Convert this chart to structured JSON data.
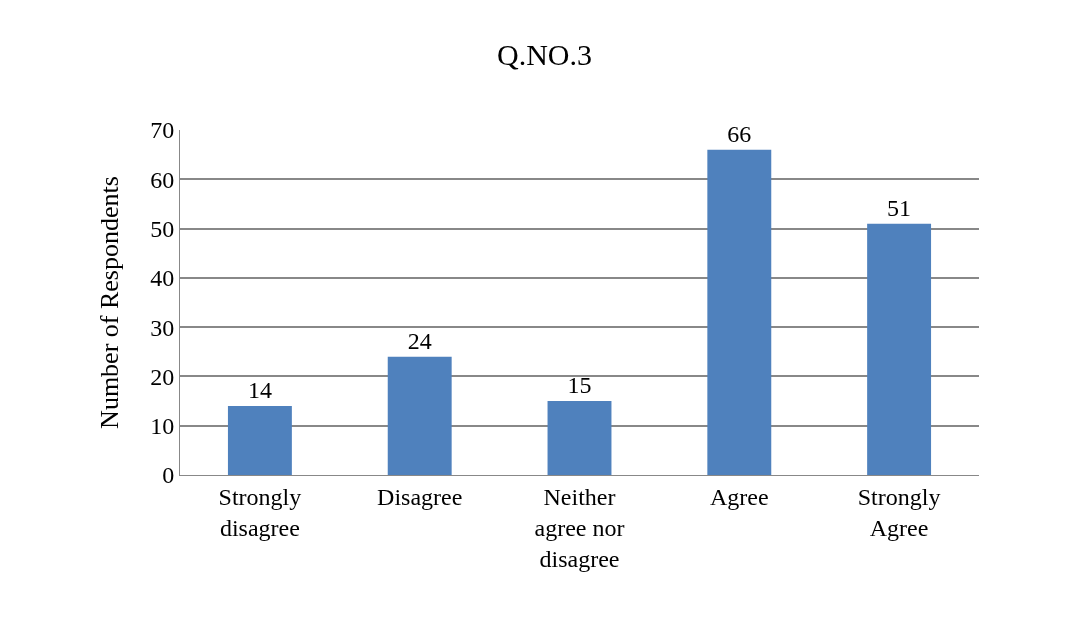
{
  "chart_data": {
    "type": "bar",
    "title": "Q.NO.3",
    "ylabel": "Number of Respondents",
    "categories": [
      "Strongly disagree",
      "Disagree",
      "Neither agree nor disagree",
      "Agree",
      "Strongly Agree"
    ],
    "values": [
      14,
      24,
      15,
      66,
      51
    ],
    "color": "#4f81bd",
    "ylim": [
      0,
      70
    ],
    "yticks": [
      0,
      10,
      20,
      30,
      40,
      50,
      60,
      70
    ],
    "grid": "y",
    "data_labels": true
  }
}
